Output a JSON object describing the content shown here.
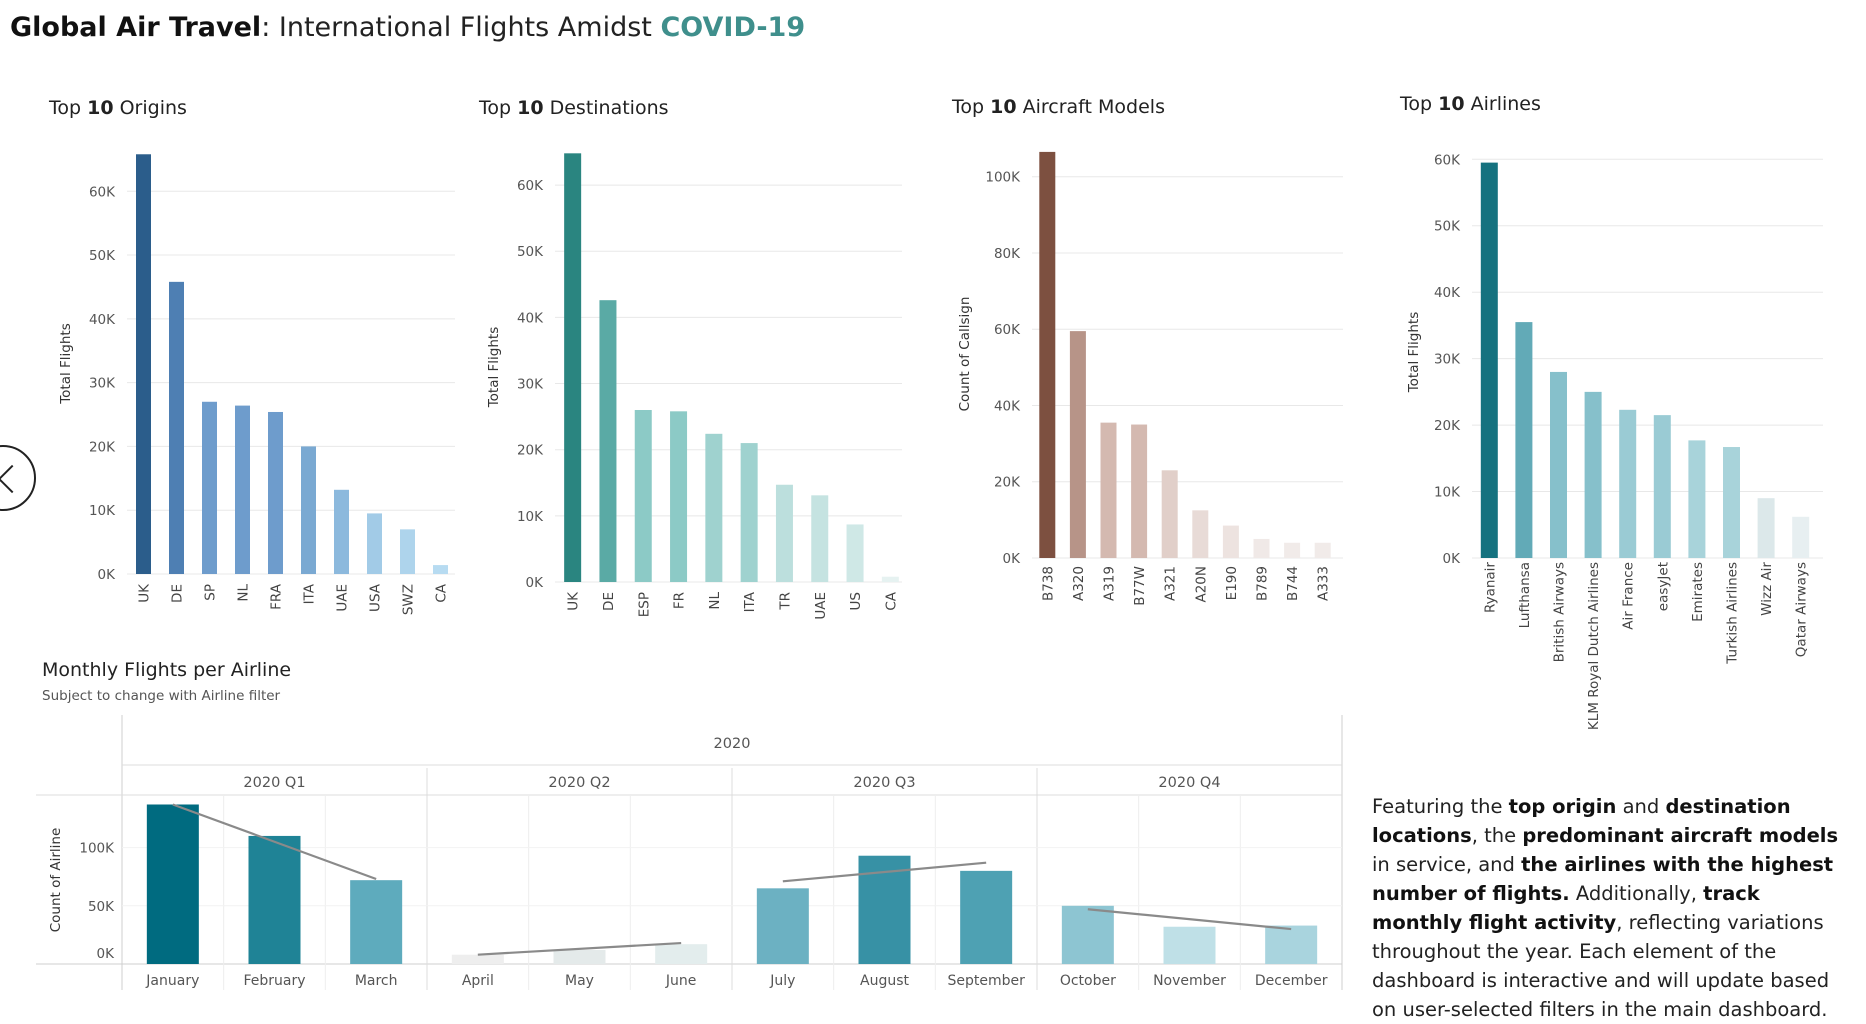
{
  "dashboard": {
    "title_bold": "Global Air Travel",
    "title_rest": ": International Flights Amidst ",
    "title_accent": "COVID-19"
  },
  "description": {
    "p1": "Featuring the ",
    "b1": "top origin",
    "p2": " and ",
    "b2": "destination locations",
    "p3": ", the ",
    "b3": "predominant aircraft models",
    "p4": " in service, and ",
    "b4": "the airlines with the highest number of flights.",
    "p5": " Additionally, ",
    "b5": "track monthly flight activity",
    "p6": ", reflecting variations throughout the year. Each element of the dashboard is interactive and will update based on user-selected filters in the main dashboard."
  },
  "colors": {
    "accent_teal": "#3f8f8c",
    "gridline": "#e8e8e8",
    "trend_line": "#8a8a8a"
  },
  "chart_data": [
    {
      "type": "bar",
      "id": "origins",
      "title_prefix": "Top ",
      "title_bold": "10",
      "title_suffix": " Origins",
      "ylabel": "Total Flights",
      "ylim": [
        0,
        66000
      ],
      "yticks": [
        0,
        10000,
        20000,
        30000,
        40000,
        50000,
        60000
      ],
      "ytick_labels": [
        "0K",
        "10K",
        "20K",
        "30K",
        "40K",
        "50K",
        "60K"
      ],
      "categories": [
        "UK",
        "DE",
        "SP",
        "NL",
        "FRA",
        "ITA",
        "UAE",
        "USA",
        "SWZ",
        "CA"
      ],
      "values": [
        65800,
        45800,
        27000,
        26400,
        25400,
        20000,
        13200,
        9500,
        7000,
        1400
      ],
      "colors": [
        "#2b5d8b",
        "#4e7fb3",
        "#6e9ccc",
        "#6e9ccc",
        "#6e9ccc",
        "#7aa9d2",
        "#8cb9dd",
        "#a2cbe7",
        "#aed4ec",
        "#b7dbf1"
      ],
      "grid": true
    },
    {
      "type": "bar",
      "id": "destinations",
      "title_prefix": "Top ",
      "title_bold": "10",
      "title_suffix": " Destinations",
      "ylabel": "Total Flights",
      "ylim": [
        0,
        65000
      ],
      "yticks": [
        0,
        10000,
        20000,
        30000,
        40000,
        50000,
        60000
      ],
      "ytick_labels": [
        "0K",
        "10K",
        "20K",
        "30K",
        "40K",
        "50K",
        "60K"
      ],
      "categories": [
        "UK",
        "DE",
        "ESP",
        "FR",
        "NL",
        "ITA",
        "TR",
        "UAE",
        "US",
        "CA"
      ],
      "values": [
        64800,
        42600,
        26000,
        25800,
        22400,
        21000,
        14700,
        13100,
        8700,
        800
      ],
      "colors": [
        "#2a8580",
        "#5aaaa5",
        "#8ccac6",
        "#8ccac6",
        "#9fd2cf",
        "#9fd2cf",
        "#bcdfdd",
        "#c5e3e1",
        "#cfe8e6",
        "#e6f2f1"
      ],
      "grid": true
    },
    {
      "type": "bar",
      "id": "aircraft-models",
      "title_prefix": "Top ",
      "title_bold": "10",
      "title_suffix": " Aircraft Models",
      "ylabel": "Count of Callsign",
      "ylim": [
        0,
        107000
      ],
      "yticks": [
        0,
        20000,
        40000,
        60000,
        80000,
        100000
      ],
      "ytick_labels": [
        "0K",
        "20K",
        "40K",
        "60K",
        "80K",
        "100K"
      ],
      "categories": [
        "B738",
        "A320",
        "A319",
        "B77W",
        "A321",
        "A20N",
        "E190",
        "B789",
        "B744",
        "A333"
      ],
      "values": [
        106500,
        59500,
        35500,
        35000,
        23000,
        12500,
        8500,
        5000,
        4000,
        4000
      ],
      "colors": [
        "#7d5040",
        "#b79488",
        "#d4b9b0",
        "#d4b9b0",
        "#e1cfc9",
        "#e8dbd7",
        "#ede3e0",
        "#f0e9e7",
        "#f1ebe9",
        "#f1ebe9"
      ],
      "grid": true
    },
    {
      "type": "bar",
      "id": "airlines",
      "title_prefix": "Top ",
      "title_bold": "10",
      "title_suffix": " Airlines",
      "ylabel": "Total Flights",
      "ylim": [
        0,
        62000
      ],
      "yticks": [
        0,
        10000,
        20000,
        30000,
        40000,
        50000,
        60000
      ],
      "ytick_labels": [
        "0K",
        "10K",
        "20K",
        "30K",
        "40K",
        "50K",
        "60K"
      ],
      "categories": [
        "Ryanair",
        "Lufthansa",
        "British Airways",
        "KLM Royal Dutch Airlines",
        "Air France",
        "easyJet",
        "Emirates",
        "Turkish Airlines",
        "Wizz Air",
        "Qatar Airways"
      ],
      "values": [
        59500,
        35500,
        28000,
        25000,
        22300,
        21500,
        17700,
        16700,
        9000,
        6200
      ],
      "colors": [
        "#15727f",
        "#62aab7",
        "#86c0cb",
        "#86c0cb",
        "#9acbd4",
        "#9acbd4",
        "#a8d3da",
        "#a8d3da",
        "#dce8ea",
        "#e7eff1"
      ],
      "grid": true
    },
    {
      "type": "bar",
      "id": "monthly",
      "title": "Monthly Flights per Airline",
      "subtitle": "Subject to change with Airline filter",
      "ylabel": "Count of Airline",
      "year_label": "2020",
      "quarters": [
        "2020 Q1",
        "2020 Q2",
        "2020 Q3",
        "2020 Q4"
      ],
      "ylim": [
        0,
        140000
      ],
      "yticks": [
        0,
        50000,
        100000
      ],
      "ytick_labels": [
        "0K",
        "50K",
        "100K"
      ],
      "categories": [
        "January",
        "February",
        "March",
        "April",
        "May",
        "June",
        "July",
        "August",
        "September",
        "October",
        "November",
        "December"
      ],
      "values": [
        137000,
        110000,
        72000,
        8000,
        12000,
        17000,
        65000,
        93000,
        80000,
        50000,
        32000,
        33000
      ],
      "colors": [
        "#006b80",
        "#1f8396",
        "#5eabbd",
        "#eeeeee",
        "#e4eaea",
        "#e3eded",
        "#6cb1c2",
        "#3791a5",
        "#4ea1b3",
        "#8dc5d2",
        "#bfe0e7",
        "#a9d4de"
      ],
      "trend_lines": [
        {
          "quarter": "2020 Q1",
          "from": 137000,
          "to": 73000
        },
        {
          "quarter": "2020 Q2",
          "from": 8000,
          "to": 18000
        },
        {
          "quarter": "2020 Q3",
          "from": 71000,
          "to": 87000
        },
        {
          "quarter": "2020 Q4",
          "from": 47000,
          "to": 30000
        }
      ],
      "grid": true
    }
  ]
}
